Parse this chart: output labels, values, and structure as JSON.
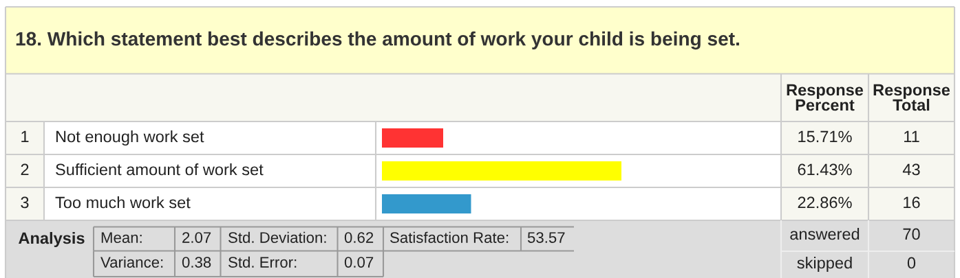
{
  "chart_data": {
    "type": "bar",
    "orientation": "horizontal",
    "title": "18. Which statement best describes the amount of work your child is being set.",
    "categories": [
      "Not enough work set",
      "Sufficient amount of work set",
      "Too much work set"
    ],
    "values": [
      15.71,
      61.43,
      22.86
    ],
    "colors": [
      "#ff3333",
      "#ffff00",
      "#3399cc"
    ],
    "value_labels": [
      "15.71%",
      "61.43%",
      "22.86%"
    ],
    "tick_labels": "y",
    "annotations": [
      "Response\nPercent",
      "Response\nTotal",
      "1",
      "2",
      "3",
      "11",
      "43",
      "16",
      "Analysis",
      "Mean:",
      "2.07",
      "Std. Deviation:",
      "0.62",
      "Satisfaction Rate:",
      "53.57",
      "Variance:",
      "0.38",
      "Std. Error:",
      "0.07",
      "answered",
      "70",
      "skipped",
      "0"
    ]
  }
}
